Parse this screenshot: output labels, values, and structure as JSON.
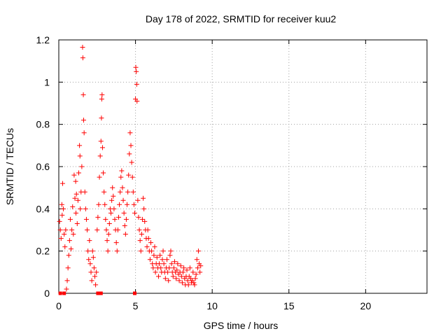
{
  "chart_data": {
    "type": "scatter",
    "title": "Day 178 of 2022, SRMTID for receiver kuu2",
    "xlabel": "GPS time / hours",
    "ylabel": "SRMTID / TECUs",
    "xlim": [
      0,
      24
    ],
    "ylim": [
      0,
      1.2
    ],
    "x_ticks": [
      0,
      5,
      10,
      15,
      20
    ],
    "y_ticks": [
      0,
      0.2,
      0.4,
      0.6,
      0.8,
      1,
      1.2
    ],
    "x_tick_labels": [
      "0",
      "5",
      "10",
      "15",
      "20"
    ],
    "y_tick_labels": [
      "0",
      "0.2",
      "0.4",
      "0.6",
      "0.8",
      "1",
      "1.2"
    ],
    "grid": true,
    "marker": "+",
    "color": "#ff0000",
    "series": [
      {
        "name": "SRMTID",
        "points": [
          [
            0.05,
            0.34
          ],
          [
            0.1,
            0.3
          ],
          [
            0.15,
            0.26
          ],
          [
            0.2,
            0.42
          ],
          [
            0.22,
            0.37
          ],
          [
            0.25,
            0.52
          ],
          [
            0.3,
            0.4
          ],
          [
            0.35,
            0.28
          ],
          [
            0.4,
            0.22
          ],
          [
            0.45,
            0.3
          ],
          [
            0.5,
            0.02
          ],
          [
            0.55,
            0.06
          ],
          [
            0.6,
            0.12
          ],
          [
            0.65,
            0.18
          ],
          [
            0.7,
            0.25
          ],
          [
            0.75,
            0.35
          ],
          [
            0.8,
            0.21
          ],
          [
            0.85,
            0.3
          ],
          [
            0.9,
            0.41
          ],
          [
            0.95,
            0.28
          ],
          [
            1.0,
            0.56
          ],
          [
            1.05,
            0.45
          ],
          [
            1.1,
            0.53
          ],
          [
            1.12,
            0.38
          ],
          [
            1.15,
            0.47
          ],
          [
            1.2,
            0.33
          ],
          [
            1.25,
            0.44
          ],
          [
            1.3,
            0.57
          ],
          [
            1.35,
            0.7
          ],
          [
            1.38,
            0.65
          ],
          [
            1.4,
            0.4
          ],
          [
            1.45,
            0.48
          ],
          [
            1.5,
            0.6
          ],
          [
            1.55,
            1.165
          ],
          [
            1.57,
            1.115
          ],
          [
            1.6,
            0.94
          ],
          [
            1.62,
            0.82
          ],
          [
            1.65,
            0.76
          ],
          [
            1.7,
            0.48
          ],
          [
            1.75,
            0.4
          ],
          [
            1.8,
            0.35
          ],
          [
            1.85,
            0.3
          ],
          [
            1.9,
            0.2
          ],
          [
            1.95,
            0.16
          ],
          [
            2.0,
            0.25
          ],
          [
            2.05,
            0.14
          ],
          [
            2.1,
            0.1
          ],
          [
            2.15,
            0.06
          ],
          [
            2.2,
            0.2
          ],
          [
            2.25,
            0.17
          ],
          [
            2.3,
            0.12
          ],
          [
            2.35,
            0.08
          ],
          [
            2.4,
            0.04
          ],
          [
            2.45,
            0.1
          ],
          [
            2.5,
            0.3
          ],
          [
            2.55,
            0.36
          ],
          [
            2.6,
            0.42
          ],
          [
            2.65,
            0.55
          ],
          [
            2.7,
            0.65
          ],
          [
            2.75,
            0.72
          ],
          [
            2.78,
            0.83
          ],
          [
            2.8,
            0.92
          ],
          [
            2.82,
            0.94
          ],
          [
            2.85,
            0.69
          ],
          [
            2.9,
            0.57
          ],
          [
            2.95,
            0.48
          ],
          [
            3.0,
            0.42
          ],
          [
            3.05,
            0.35
          ],
          [
            3.1,
            0.3
          ],
          [
            3.15,
            0.25
          ],
          [
            3.2,
            0.2
          ],
          [
            3.25,
            0.28
          ],
          [
            3.3,
            0.33
          ],
          [
            3.35,
            0.4
          ],
          [
            3.4,
            0.38
          ],
          [
            3.45,
            0.44
          ],
          [
            3.5,
            0.5
          ],
          [
            3.55,
            0.46
          ],
          [
            3.6,
            0.4
          ],
          [
            3.65,
            0.35
          ],
          [
            3.7,
            0.3
          ],
          [
            3.75,
            0.24
          ],
          [
            3.8,
            0.2
          ],
          [
            3.85,
            0.3
          ],
          [
            3.9,
            0.36
          ],
          [
            3.95,
            0.42
          ],
          [
            4.0,
            0.48
          ],
          [
            4.05,
            0.55
          ],
          [
            4.1,
            0.58
          ],
          [
            4.15,
            0.5
          ],
          [
            4.2,
            0.44
          ],
          [
            4.25,
            0.38
          ],
          [
            4.3,
            0.32
          ],
          [
            4.35,
            0.28
          ],
          [
            4.4,
            0.35
          ],
          [
            4.45,
            0.42
          ],
          [
            4.5,
            0.48
          ],
          [
            4.55,
            0.56
          ],
          [
            4.6,
            0.66
          ],
          [
            4.65,
            0.76
          ],
          [
            4.7,
            0.7
          ],
          [
            4.75,
            0.62
          ],
          [
            4.8,
            0.55
          ],
          [
            4.85,
            0.48
          ],
          [
            4.9,
            0.42
          ],
          [
            4.95,
            0.38
          ],
          [
            5.0,
            0.92
          ],
          [
            5.02,
            1.07
          ],
          [
            5.05,
            1.05
          ],
          [
            5.08,
            0.99
          ],
          [
            5.1,
            0.91
          ],
          [
            5.15,
            0.44
          ],
          [
            5.2,
            0.36
          ],
          [
            5.25,
            0.3
          ],
          [
            5.3,
            0.25
          ],
          [
            5.35,
            0.2
          ],
          [
            5.4,
            0.28
          ],
          [
            5.45,
            0.35
          ],
          [
            5.5,
            0.45
          ],
          [
            5.55,
            0.4
          ],
          [
            5.6,
            0.34
          ],
          [
            5.65,
            0.3
          ],
          [
            5.7,
            0.26
          ],
          [
            5.75,
            0.22
          ],
          [
            5.8,
            0.3
          ],
          [
            5.85,
            0.26
          ],
          [
            5.9,
            0.2
          ],
          [
            5.95,
            0.16
          ],
          [
            6.0,
            0.24
          ],
          [
            6.05,
            0.2
          ],
          [
            6.1,
            0.14
          ],
          [
            6.15,
            0.12
          ],
          [
            6.2,
            0.18
          ],
          [
            6.25,
            0.22
          ],
          [
            6.3,
            0.1
          ],
          [
            6.35,
            0.14
          ],
          [
            6.4,
            0.17
          ],
          [
            6.45,
            0.12
          ],
          [
            6.5,
            0.08
          ],
          [
            6.55,
            0.14
          ],
          [
            6.6,
            0.18
          ],
          [
            6.65,
            0.12
          ],
          [
            6.7,
            0.1
          ],
          [
            6.75,
            0.16
          ],
          [
            6.8,
            0.2
          ],
          [
            6.85,
            0.14
          ],
          [
            6.9,
            0.1
          ],
          [
            6.95,
            0.07
          ],
          [
            7.0,
            0.12
          ],
          [
            7.05,
            0.16
          ],
          [
            7.1,
            0.1
          ],
          [
            7.15,
            0.06
          ],
          [
            7.2,
            0.12
          ],
          [
            7.25,
            0.18
          ],
          [
            7.3,
            0.2
          ],
          [
            7.35,
            0.14
          ],
          [
            7.4,
            0.1
          ],
          [
            7.45,
            0.08
          ],
          [
            7.5,
            0.12
          ],
          [
            7.55,
            0.15
          ],
          [
            7.6,
            0.1
          ],
          [
            7.65,
            0.07
          ],
          [
            7.7,
            0.11
          ],
          [
            7.75,
            0.14
          ],
          [
            7.8,
            0.09
          ],
          [
            7.85,
            0.06
          ],
          [
            7.9,
            0.1
          ],
          [
            7.95,
            0.13
          ],
          [
            8.0,
            0.08
          ],
          [
            8.05,
            0.05
          ],
          [
            8.1,
            0.1
          ],
          [
            8.15,
            0.12
          ],
          [
            8.2,
            0.07
          ],
          [
            8.25,
            0.04
          ],
          [
            8.3,
            0.08
          ],
          [
            8.35,
            0.11
          ],
          [
            8.4,
            0.06
          ],
          [
            8.45,
            0.04
          ],
          [
            8.5,
            0.08
          ],
          [
            8.55,
            0.12
          ],
          [
            8.6,
            0.07
          ],
          [
            8.65,
            0.05
          ],
          [
            8.7,
            0.06
          ],
          [
            8.75,
            0.1
          ],
          [
            8.8,
            0.05
          ],
          [
            8.85,
            0.04
          ],
          [
            8.9,
            0.07
          ],
          [
            8.95,
            0.09
          ],
          [
            9.0,
            0.16
          ],
          [
            9.05,
            0.12
          ],
          [
            9.1,
            0.2
          ],
          [
            9.15,
            0.14
          ],
          [
            9.2,
            0.1
          ],
          [
            9.25,
            0.13
          ]
        ]
      }
    ],
    "zero_markers": [
      0.1,
      0.35,
      2.55,
      2.65,
      2.75,
      4.95
    ]
  }
}
